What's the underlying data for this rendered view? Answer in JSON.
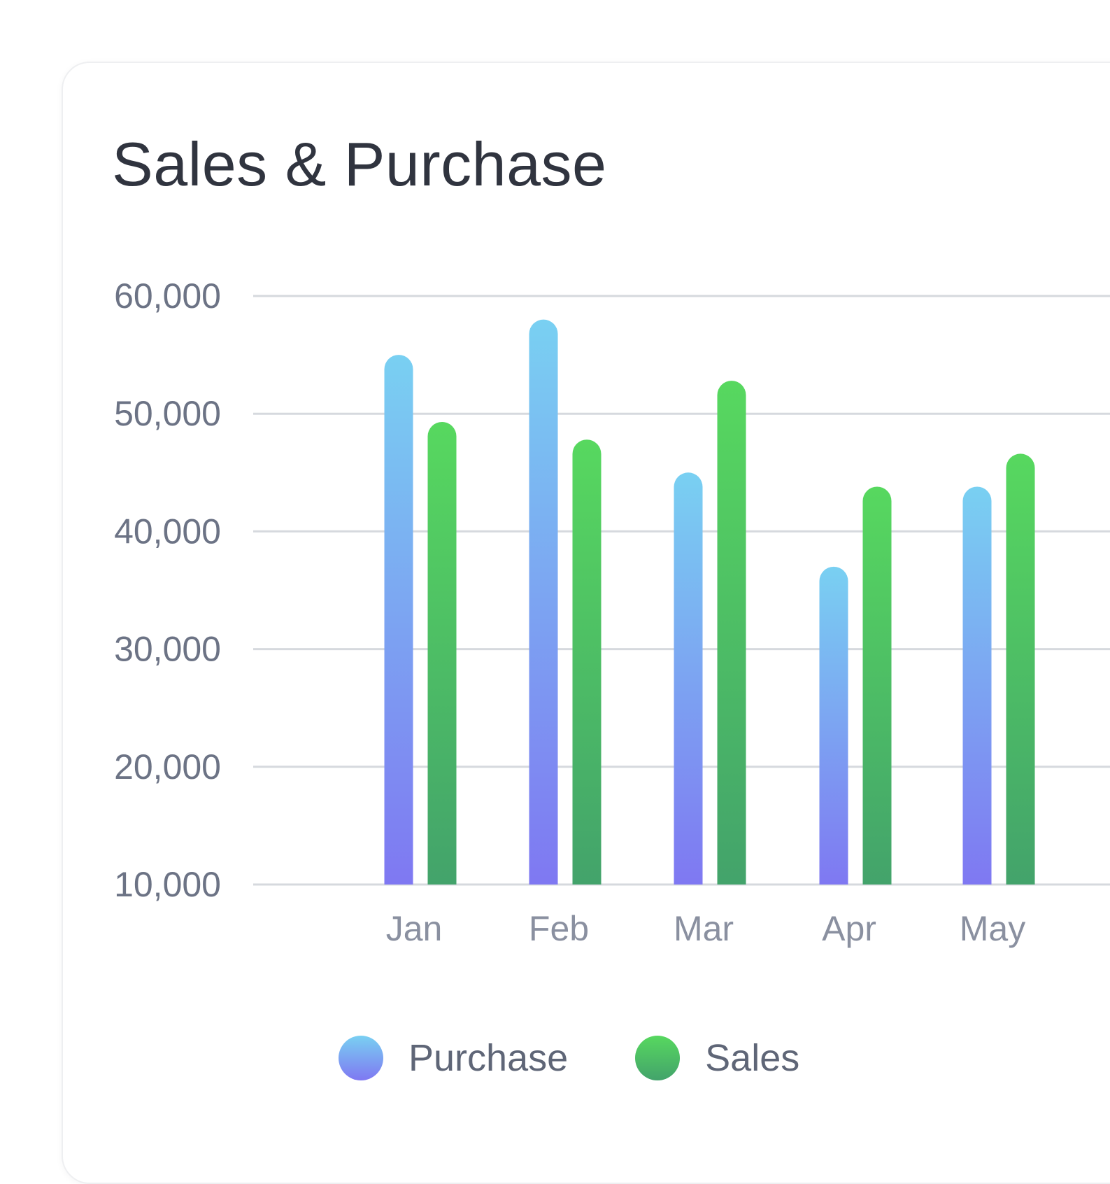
{
  "chart_data": {
    "type": "bar",
    "title": "Sales & Purchase",
    "categories": [
      "Jan",
      "Feb",
      "Mar",
      "Apr",
      "May"
    ],
    "series": [
      {
        "name": "Purchase",
        "values": [
          55000,
          58000,
          45000,
          37000,
          43800
        ],
        "colors": [
          "#79d0f2",
          "#7f78f2"
        ]
      },
      {
        "name": "Sales",
        "values": [
          49300,
          47800,
          52800,
          43800,
          46600
        ],
        "colors": [
          "#57d85f",
          "#43a36b"
        ]
      }
    ],
    "yticks": [
      60000,
      50000,
      40000,
      30000,
      20000,
      10000
    ],
    "ytick_labels": [
      "60,000",
      "50,000",
      "40,000",
      "30,000",
      "20,000",
      "10,000"
    ],
    "ylim": [
      10000,
      60000
    ],
    "xlabel": "",
    "ylabel": "",
    "grid": true,
    "legend_position": "bottom"
  }
}
